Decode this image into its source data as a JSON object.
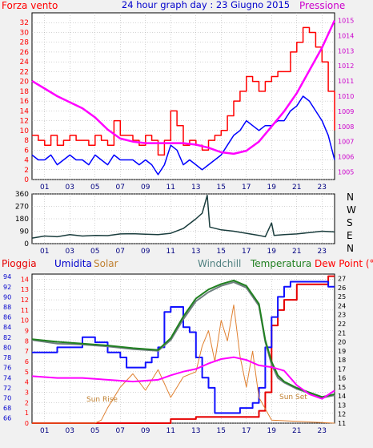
{
  "header": {
    "left_label": "Forza vento",
    "title": "24 hour graph day : 23 Giugno 2015",
    "right_label": "Pressione"
  },
  "colors": {
    "background": "#f1f1f1",
    "plot_bg": "#ffffff",
    "grid": "#a9a9a9",
    "gust": "#ff0000",
    "wind": "#0000ff",
    "pressure": "#ff00ff",
    "direction": "#1a3d3d",
    "rain": "#e60000",
    "humidity": "#1010ff",
    "solar": "#e08030",
    "windchill": "#708080",
    "temperature": "#208020",
    "dewpoint": "#ff00ff",
    "axis_left_top": "#ff0000",
    "axis_right_top": "#cc00cc",
    "axis_humidity": "#0000cc",
    "axis_dew": "#ff0000"
  },
  "chart_data": [
    {
      "id": "wind",
      "type": "line",
      "x_ticks": [
        "01",
        "03",
        "05",
        "07",
        "09",
        "11",
        "13",
        "15",
        "17",
        "19",
        "21",
        "23"
      ],
      "y_left_label": "Forza vento",
      "y_left_ticks": [
        0,
        2,
        4,
        6,
        8,
        10,
        12,
        14,
        16,
        18,
        20,
        22,
        24,
        26,
        28,
        30,
        32
      ],
      "ylim_left": [
        0,
        34
      ],
      "y_right_label": "Pressione",
      "y_right_ticks": [
        1005,
        1006,
        1007,
        1008,
        1009,
        1010,
        1011,
        1012,
        1013,
        1014,
        1015
      ],
      "ylim_right": [
        1004.5,
        1015.5
      ],
      "grid": true,
      "series": [
        {
          "axis": "left",
          "color_key": "gust",
          "x": [
            0,
            0.5,
            1,
            1.5,
            2,
            2.5,
            3,
            3.5,
            4,
            4.5,
            5,
            5.5,
            6,
            6.5,
            7,
            7.5,
            8,
            8.5,
            9,
            9.5,
            10,
            10.5,
            11,
            11.5,
            12,
            12.5,
            13,
            13.5,
            14,
            14.5,
            15,
            15.5,
            16,
            16.5,
            17,
            17.5,
            18,
            18.5,
            19,
            19.5,
            20,
            20.5,
            21,
            21.5,
            22,
            22.5,
            23,
            23.5,
            24
          ],
          "values": [
            9,
            8,
            7,
            9,
            7,
            8,
            9,
            8,
            8,
            7,
            9,
            8,
            7,
            12,
            9,
            9,
            8,
            7,
            9,
            8,
            5,
            8,
            14,
            11,
            7,
            8,
            7,
            6,
            8,
            9,
            10,
            13,
            16,
            18,
            21,
            20,
            18,
            20,
            21,
            22,
            22,
            26,
            28,
            31,
            30,
            27,
            24,
            18,
            10
          ]
        },
        {
          "axis": "left",
          "color_key": "wind",
          "x": [
            0,
            0.5,
            1,
            1.5,
            2,
            2.5,
            3,
            3.5,
            4,
            4.5,
            5,
            5.5,
            6,
            6.5,
            7,
            7.5,
            8,
            8.5,
            9,
            9.5,
            10,
            10.5,
            11,
            11.5,
            12,
            12.5,
            13,
            13.5,
            14,
            14.5,
            15,
            15.5,
            16,
            16.5,
            17,
            17.5,
            18,
            18.5,
            19,
            19.5,
            20,
            20.5,
            21,
            21.5,
            22,
            22.5,
            23,
            23.5,
            24
          ],
          "values": [
            5,
            4,
            4,
            5,
            3,
            4,
            5,
            4,
            4,
            3,
            5,
            4,
            3,
            5,
            4,
            4,
            4,
            3,
            4,
            3,
            1,
            3,
            7,
            6,
            3,
            4,
            3,
            2,
            3,
            4,
            5,
            7,
            9,
            10,
            12,
            11,
            10,
            11,
            11,
            12,
            12,
            14,
            15,
            17,
            16,
            14,
            12,
            9,
            4
          ]
        },
        {
          "axis": "right",
          "color_key": "pressure",
          "x": [
            0,
            1,
            2,
            3,
            4,
            5,
            6,
            7,
            8,
            9,
            10,
            11,
            12,
            13,
            14,
            15,
            16,
            17,
            18,
            19,
            20,
            21,
            22,
            23,
            24
          ],
          "values": [
            1011.0,
            1010.5,
            1010.0,
            1009.6,
            1009.2,
            1008.6,
            1007.8,
            1007.2,
            1007.0,
            1006.9,
            1006.9,
            1006.9,
            1006.9,
            1006.8,
            1006.6,
            1006.3,
            1006.2,
            1006.4,
            1007.0,
            1008.0,
            1009.0,
            1010.2,
            1011.7,
            1013.2,
            1015.0
          ]
        }
      ]
    },
    {
      "id": "direction",
      "type": "line",
      "x_ticks": [
        "01",
        "03",
        "05",
        "07",
        "09",
        "11",
        "13",
        "15",
        "17",
        "19",
        "21",
        "23"
      ],
      "y_ticks": [
        0,
        90,
        180,
        270,
        360
      ],
      "ylim": [
        0,
        360
      ],
      "compass_labels": [
        "N",
        "W",
        "S",
        "E",
        "N"
      ],
      "grid": true,
      "series": [
        {
          "color_key": "direction",
          "x": [
            0,
            1,
            2,
            3,
            4,
            5,
            6,
            7,
            8,
            9,
            10,
            11,
            12,
            13,
            13.5,
            13.9,
            14.1,
            15,
            16,
            17,
            18,
            18.5,
            19,
            19.2,
            20,
            21,
            22,
            23,
            24
          ],
          "values": [
            40,
            55,
            50,
            65,
            55,
            60,
            58,
            70,
            72,
            68,
            65,
            75,
            110,
            180,
            220,
            350,
            120,
            100,
            90,
            75,
            60,
            50,
            150,
            60,
            65,
            70,
            80,
            90,
            85
          ]
        }
      ]
    },
    {
      "id": "weather",
      "type": "line",
      "x_ticks": [
        "01",
        "03",
        "05",
        "07",
        "09",
        "11",
        "13",
        "15",
        "17",
        "19",
        "21",
        "23"
      ],
      "legend": [
        "Pioggia",
        "Umidita",
        "Solar",
        "Windchill",
        "Temperatura",
        "Dew Point (°C)"
      ],
      "y_left_ticks": [
        0,
        1,
        2,
        3,
        4,
        5,
        6,
        7,
        8,
        9,
        10,
        11,
        12,
        13,
        14
      ],
      "ylim_left": [
        0,
        14.5
      ],
      "y_humidity_ticks": [
        66,
        68,
        70,
        72,
        74,
        76,
        78,
        80,
        82,
        84,
        86,
        88,
        90,
        92,
        94
      ],
      "ylim_humidity": [
        65,
        94.5
      ],
      "y_right_ticks": [
        11,
        12,
        13,
        14,
        15,
        16,
        17,
        18,
        19,
        20,
        21,
        22,
        23,
        24,
        25,
        26,
        27
      ],
      "ylim_right": [
        11,
        27.5
      ],
      "annotations": [
        "Sun Rise",
        "Sun Set"
      ],
      "grid": true,
      "series": [
        {
          "name": "Pioggia",
          "axis": "left",
          "color_key": "rain",
          "x": [
            0,
            10,
            10.7,
            11,
            13,
            17.9,
            18,
            18.5,
            19,
            19.5,
            20,
            21,
            23.5,
            23.6,
            24
          ],
          "values": [
            0,
            0,
            0,
            0.4,
            0.6,
            0.6,
            1.2,
            3.0,
            9.5,
            11.0,
            12.0,
            13.5,
            14.3,
            14.3,
            14.3
          ]
        },
        {
          "name": "Umidita",
          "axis": "humidity",
          "color_key": "humidity",
          "x": [
            0,
            1,
            2,
            3,
            4,
            5,
            6,
            7,
            7.5,
            8,
            8.5,
            9,
            9.5,
            10,
            10.5,
            11,
            11.5,
            12,
            12.5,
            13,
            13.5,
            14,
            14.5,
            15,
            15.5,
            16,
            16.5,
            17,
            17.5,
            18,
            18.5,
            19,
            19.5,
            20,
            20.5,
            21,
            22,
            23,
            23.5,
            24
          ],
          "values": [
            79,
            79,
            80,
            80,
            82,
            81,
            79,
            78,
            76,
            76,
            76,
            77,
            78,
            80,
            87,
            88,
            88,
            84,
            83,
            78,
            74,
            72,
            67,
            67,
            67,
            67,
            68,
            68,
            69,
            72,
            80,
            86,
            90,
            92,
            93,
            93,
            93,
            93,
            92,
            92
          ]
        },
        {
          "name": "Solar",
          "axis": "left",
          "color_key": "solar",
          "x": [
            0,
            5,
            5.5,
            6,
            7,
            8,
            9,
            10,
            11,
            12,
            13,
            13.5,
            14,
            14.5,
            15,
            15.5,
            16,
            16.5,
            17,
            17.5,
            18,
            19,
            24
          ],
          "values": [
            0,
            0,
            0.3,
            1.5,
            3.5,
            4.8,
            3.2,
            5.2,
            2.5,
            4.5,
            5.0,
            7.5,
            9.0,
            6.0,
            10.0,
            8.0,
            11.5,
            6.5,
            3.5,
            7.0,
            2.5,
            0.3,
            0
          ]
        },
        {
          "name": "Windchill",
          "axis": "dew",
          "color_key": "windchill",
          "x": [
            0,
            2,
            4,
            6,
            8,
            10,
            11,
            12,
            13,
            14,
            15,
            16,
            17,
            18,
            18.5,
            19,
            19.5,
            20,
            21,
            22,
            23,
            24
          ],
          "values": [
            20.2,
            19.8,
            19.7,
            19.5,
            19.2,
            19.0,
            20.2,
            22.5,
            24.5,
            25.5,
            26.2,
            26.6,
            26.0,
            24.0,
            20.0,
            17.5,
            16.0,
            15.5,
            14.8,
            14.3,
            13.8,
            14.1
          ]
        },
        {
          "name": "Temperatura",
          "axis": "dew",
          "color_key": "temperature",
          "x": [
            0,
            2,
            4,
            6,
            8,
            10,
            11,
            12,
            13,
            14,
            15,
            16,
            17,
            18,
            18.5,
            19,
            19.5,
            20,
            21,
            22,
            23,
            24
          ],
          "values": [
            20.3,
            20.0,
            19.8,
            19.6,
            19.3,
            19.1,
            20.4,
            22.8,
            24.8,
            25.8,
            26.4,
            26.8,
            26.2,
            24.2,
            20.2,
            17.8,
            16.3,
            15.6,
            14.9,
            14.4,
            13.9,
            14.2
          ]
        },
        {
          "name": "Dew Point (°C)",
          "axis": "dew",
          "color_key": "dewpoint",
          "x": [
            0,
            2,
            4,
            6,
            8,
            10,
            11,
            12,
            13,
            14,
            15,
            16,
            17,
            18,
            19,
            20,
            21,
            22,
            23,
            24
          ],
          "values": [
            16.2,
            16.0,
            16.0,
            15.8,
            15.6,
            15.8,
            16.3,
            16.7,
            17.0,
            17.6,
            18.1,
            18.3,
            18.0,
            17.4,
            17.2,
            16.8,
            15.2,
            14.2,
            13.7,
            14.6
          ]
        }
      ]
    }
  ]
}
